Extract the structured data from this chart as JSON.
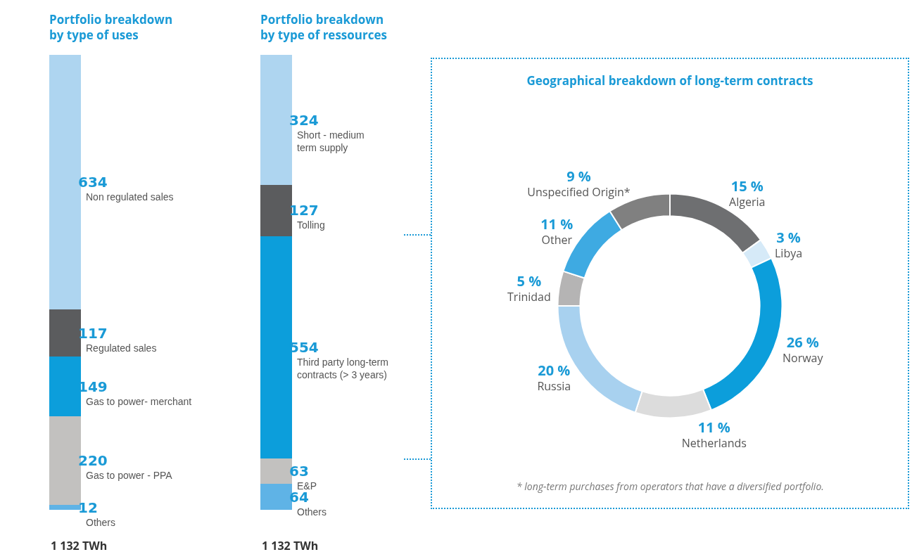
{
  "chart_data": [
    {
      "type": "bar",
      "stacked": true,
      "title": "Portfolio breakdown\nby type of uses",
      "categories": [
        null
      ],
      "data_labels": true,
      "legend": false,
      "annotations": [
        "1 132 TWh"
      ],
      "series": [
        {
          "name": "Others",
          "color": "#5fb3e6",
          "values": [
            12
          ]
        },
        {
          "name": "Gas to power - PPA",
          "color": "#c2c1bf",
          "values": [
            220
          ]
        },
        {
          "name": "Gas to power- merchant",
          "color": "#0c9edb",
          "values": [
            149
          ]
        },
        {
          "name": "Regulated sales",
          "color": "#5b5c5e",
          "values": [
            117
          ]
        },
        {
          "name": "Non regulated sales",
          "color": "#aed5f0",
          "values": [
            634
          ]
        }
      ]
    },
    {
      "type": "bar",
      "stacked": true,
      "title": "Portfolio breakdown\nby type of ressources",
      "categories": [
        null
      ],
      "data_labels": true,
      "legend": false,
      "annotations": [
        "1 132 TWh"
      ],
      "series": [
        {
          "name": "Others",
          "color": "#5fb3e6",
          "values": [
            64
          ]
        },
        {
          "name": "E&P",
          "color": "#c2c1bf",
          "values": [
            63
          ]
        },
        {
          "name": "Third party long-term\ncontracts (> 3 years)",
          "color": "#0c9edb",
          "values": [
            554
          ]
        },
        {
          "name": "Tolling",
          "color": "#5b5c5e",
          "values": [
            127
          ]
        },
        {
          "name": "Short - medium\nterm supply",
          "color": "#aed5f0",
          "values": [
            324
          ]
        }
      ]
    },
    {
      "type": "donut",
      "title": "Geographical breakdown of long-term contracts",
      "legend": false,
      "categories": [
        "Algeria",
        "Libya",
        "Norway",
        "Netherlands",
        "Russia",
        "Trinidad",
        "Other",
        "Unspecified Origin*"
      ],
      "values": [
        15,
        3,
        26,
        11,
        20,
        5,
        11,
        9
      ],
      "value_labels": [
        "15 %",
        "3 %",
        "26 %",
        "11 %",
        "20 %",
        "5 %",
        "11 %",
        "9 %"
      ],
      "colors": [
        "#6e6f71",
        "#d6eaf8",
        "#0c9edb",
        "#dcdcdc",
        "#a8d1ef",
        "#b5b4b4",
        "#3eaae2",
        "#808080"
      ],
      "annotations": [
        "* long-term purchases from operators that have a diversified portfolio."
      ]
    }
  ]
}
